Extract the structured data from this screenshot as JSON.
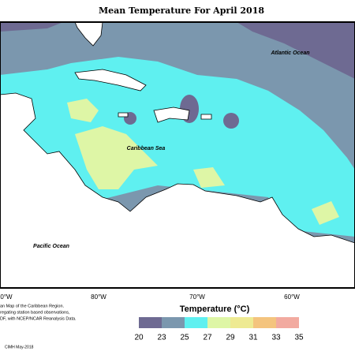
{
  "title": "Mean Temperature For April 2018",
  "labels": {
    "atlantic": "Atlantic Ocean",
    "caribbean": "Caribbean Sea",
    "pacific": "Pacific Ocean"
  },
  "longitudes": [
    "0°W",
    "80°W",
    "70°W",
    "60°W"
  ],
  "legend": {
    "title": "Temperature (°C)",
    "ticks": [
      20,
      23,
      25,
      27,
      29,
      31,
      33,
      35
    ],
    "colors": [
      "#6e6a92",
      "#7b97ae",
      "#5ff0f0",
      "#def6a6",
      "#eeea92",
      "#f4c47e",
      "#f2aaa0"
    ]
  },
  "footnote": [
    "an Map of the Caribbean Region.",
    "regating station based observations,",
    "DF, with NCEP/NCAR Reanalysis Data."
  ],
  "credit": "CIMH May-2018"
}
